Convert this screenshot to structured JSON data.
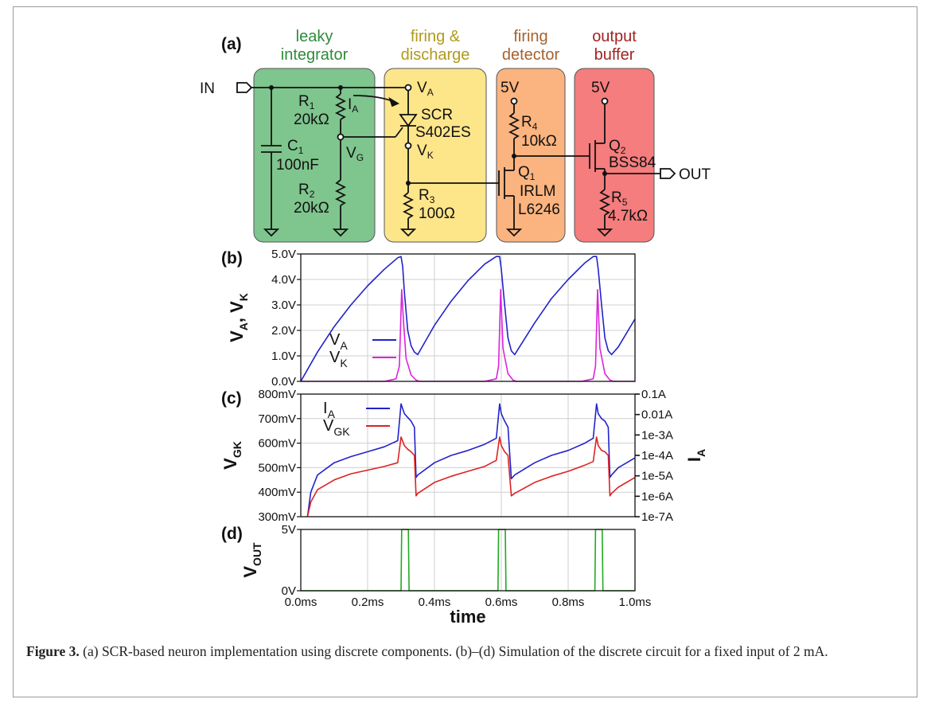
{
  "panel_labels": [
    "(a)",
    "(b)",
    "(c)",
    "(d)"
  ],
  "blocks": [
    {
      "line1": "leaky",
      "line2": "integrator",
      "fill": "#7fc58e",
      "text_color": "#2e8b3a"
    },
    {
      "line1": "firing &",
      "line2": "discharge",
      "fill": "#fde58a",
      "text_color": "#b09a1a"
    },
    {
      "line1": "firing",
      "line2": "detector",
      "fill": "#fbb47f",
      "text_color": "#a8602a"
    },
    {
      "line1": "output",
      "line2": "buffer",
      "fill": "#f57d7d",
      "text_color": "#a32323"
    }
  ],
  "circuit": {
    "in_label": "IN",
    "out_label": "OUT",
    "supply": "5V",
    "c1": {
      "name": "C",
      "sub": "1",
      "value": "100nF"
    },
    "r1": {
      "name": "R",
      "sub": "1",
      "value": "20kΩ"
    },
    "r2": {
      "name": "R",
      "sub": "2",
      "value": "20kΩ"
    },
    "r3": {
      "name": "R",
      "sub": "3",
      "value": "100Ω"
    },
    "r4": {
      "name": "R",
      "sub": "4",
      "value": "10kΩ"
    },
    "r5": {
      "name": "R",
      "sub": "5",
      "value": "4.7kΩ"
    },
    "ia": {
      "name": "I",
      "sub": "A"
    },
    "va": {
      "name": "V",
      "sub": "A"
    },
    "vk": {
      "name": "V",
      "sub": "K"
    },
    "vg": {
      "name": "V",
      "sub": "G"
    },
    "scr": {
      "line1": "SCR",
      "line2": "S402ES"
    },
    "q1": {
      "name": "Q",
      "sub": "1",
      "line1": "IRLM",
      "line2": "L6246"
    },
    "q2": {
      "name": "Q",
      "sub": "2",
      "part": "BSS84"
    }
  },
  "chart_data": [
    {
      "panel": "(b)",
      "type": "line",
      "ylabel_main": "V",
      "ylabel_sub1": "A",
      "ylabel_sep": ", V",
      "ylabel_sub2": "K",
      "xlim": [
        0,
        1.0
      ],
      "ylim": [
        0,
        5.0
      ],
      "yticks": [
        "0.0V",
        "1.0V",
        "2.0V",
        "3.0V",
        "4.0V",
        "5.0V"
      ],
      "grid": true,
      "legend": [
        {
          "name": "V",
          "sub": "A",
          "color": "#2222cc"
        },
        {
          "name": "V",
          "sub": "K",
          "color": "#dd22dd"
        }
      ],
      "series": [
        {
          "name": "V_A",
          "color": "#2222cc",
          "x": [
            0.0,
            0.05,
            0.1,
            0.15,
            0.2,
            0.25,
            0.29,
            0.3,
            0.305,
            0.31,
            0.32,
            0.33,
            0.34,
            0.35,
            0.4,
            0.45,
            0.5,
            0.55,
            0.585,
            0.595,
            0.6,
            0.61,
            0.62,
            0.63,
            0.64,
            0.7,
            0.75,
            0.8,
            0.85,
            0.875,
            0.885,
            0.89,
            0.9,
            0.91,
            0.92,
            0.93,
            0.95,
            1.0
          ],
          "y": [
            0.0,
            1.15,
            2.15,
            3.0,
            3.75,
            4.4,
            4.85,
            4.9,
            4.5,
            3.5,
            2.0,
            1.4,
            1.15,
            1.05,
            2.2,
            3.15,
            3.95,
            4.6,
            4.9,
            4.9,
            4.4,
            3.0,
            1.7,
            1.2,
            1.05,
            2.3,
            3.25,
            4.0,
            4.65,
            4.9,
            4.9,
            4.4,
            3.0,
            1.7,
            1.2,
            1.05,
            1.35,
            2.45
          ]
        },
        {
          "name": "V_K",
          "color": "#dd22dd",
          "x": [
            0.0,
            0.25,
            0.285,
            0.295,
            0.302,
            0.308,
            0.315,
            0.33,
            0.345,
            0.355,
            0.55,
            0.585,
            0.592,
            0.598,
            0.605,
            0.62,
            0.635,
            0.645,
            0.84,
            0.875,
            0.882,
            0.888,
            0.895,
            0.91,
            0.925,
            0.935,
            1.0
          ],
          "y": [
            0.0,
            0.0,
            0.1,
            0.6,
            3.6,
            2.2,
            0.9,
            0.25,
            0.05,
            0.0,
            0.0,
            0.1,
            0.6,
            3.6,
            1.3,
            0.3,
            0.05,
            0.0,
            0.0,
            0.1,
            0.6,
            3.6,
            1.3,
            0.3,
            0.05,
            0.0,
            0.0
          ]
        }
      ]
    },
    {
      "panel": "(c)",
      "type": "line",
      "ylabel_main": "V",
      "ylabel_sub": "GK",
      "ylabel2_main": "I",
      "ylabel2_sub": "A",
      "xlim": [
        0,
        1.0
      ],
      "ylim": [
        300,
        800
      ],
      "yticks": [
        "300mV",
        "400mV",
        "500mV",
        "600mV",
        "700mV",
        "800mV"
      ],
      "y2ticks": [
        "1e-7A",
        "1e-6A",
        "1e-5A",
        "1e-4A",
        "1e-3A",
        "0.01A",
        "0.1A"
      ],
      "grid": true,
      "legend": [
        {
          "name": "I",
          "sub": "A",
          "color": "#2222cc"
        },
        {
          "name": "V",
          "sub": "GK",
          "color": "#dd2222"
        }
      ],
      "series": [
        {
          "name": "I_A",
          "color": "#2222cc",
          "x": [
            0.02,
            0.03,
            0.05,
            0.1,
            0.15,
            0.2,
            0.25,
            0.29,
            0.3,
            0.31,
            0.32,
            0.33,
            0.34,
            0.345,
            0.35,
            0.4,
            0.45,
            0.5,
            0.55,
            0.585,
            0.595,
            0.6,
            0.61,
            0.62,
            0.63,
            0.64,
            0.7,
            0.75,
            0.8,
            0.85,
            0.875,
            0.885,
            0.89,
            0.9,
            0.91,
            0.92,
            0.925,
            0.93,
            0.95,
            1.0
          ],
          "y": [
            300,
            400,
            470,
            520,
            545,
            565,
            585,
            610,
            760,
            720,
            705,
            690,
            665,
            460,
            470,
            520,
            550,
            570,
            595,
            620,
            760,
            720,
            690,
            665,
            455,
            470,
            520,
            550,
            570,
            600,
            620,
            760,
            720,
            700,
            690,
            665,
            460,
            470,
            500,
            540
          ]
        },
        {
          "name": "V_GK",
          "color": "#dd2222",
          "x": [
            0.02,
            0.03,
            0.05,
            0.1,
            0.15,
            0.2,
            0.25,
            0.29,
            0.3,
            0.31,
            0.32,
            0.33,
            0.34,
            0.345,
            0.35,
            0.4,
            0.45,
            0.5,
            0.55,
            0.585,
            0.595,
            0.6,
            0.61,
            0.62,
            0.63,
            0.64,
            0.7,
            0.75,
            0.8,
            0.85,
            0.875,
            0.885,
            0.89,
            0.9,
            0.91,
            0.92,
            0.925,
            0.93,
            0.95,
            1.0
          ],
          "y": [
            300,
            360,
            410,
            450,
            475,
            490,
            505,
            520,
            625,
            590,
            575,
            565,
            550,
            385,
            395,
            440,
            465,
            485,
            505,
            530,
            625,
            590,
            565,
            550,
            385,
            395,
            440,
            465,
            485,
            510,
            525,
            625,
            590,
            570,
            565,
            550,
            385,
            395,
            420,
            460
          ]
        }
      ]
    },
    {
      "panel": "(d)",
      "type": "line",
      "ylabel_main": "V",
      "ylabel_sub": "OUT",
      "xlabel": "time",
      "xlim": [
        0,
        1.0
      ],
      "ylim": [
        0,
        5
      ],
      "yticks": [
        "0V",
        "5V"
      ],
      "xticks": [
        "0.0ms",
        "0.2ms",
        "0.4ms",
        "0.6ms",
        "0.8ms",
        "1.0ms"
      ],
      "grid": true,
      "series": [
        {
          "name": "V_OUT",
          "color": "#22aa22",
          "x": [
            0.0,
            0.3,
            0.302,
            0.322,
            0.324,
            0.59,
            0.592,
            0.612,
            0.614,
            0.88,
            0.882,
            0.902,
            0.904,
            1.0
          ],
          "y": [
            0,
            0,
            5,
            5,
            0,
            0,
            5,
            5,
            0,
            0,
            5,
            5,
            0,
            0
          ]
        }
      ]
    }
  ],
  "caption": {
    "label": "Figure 3.",
    "text": "(a) SCR-based neuron implementation using discrete components. (b)–(d) Simulation of the discrete circuit for a fixed input of 2 mA."
  }
}
